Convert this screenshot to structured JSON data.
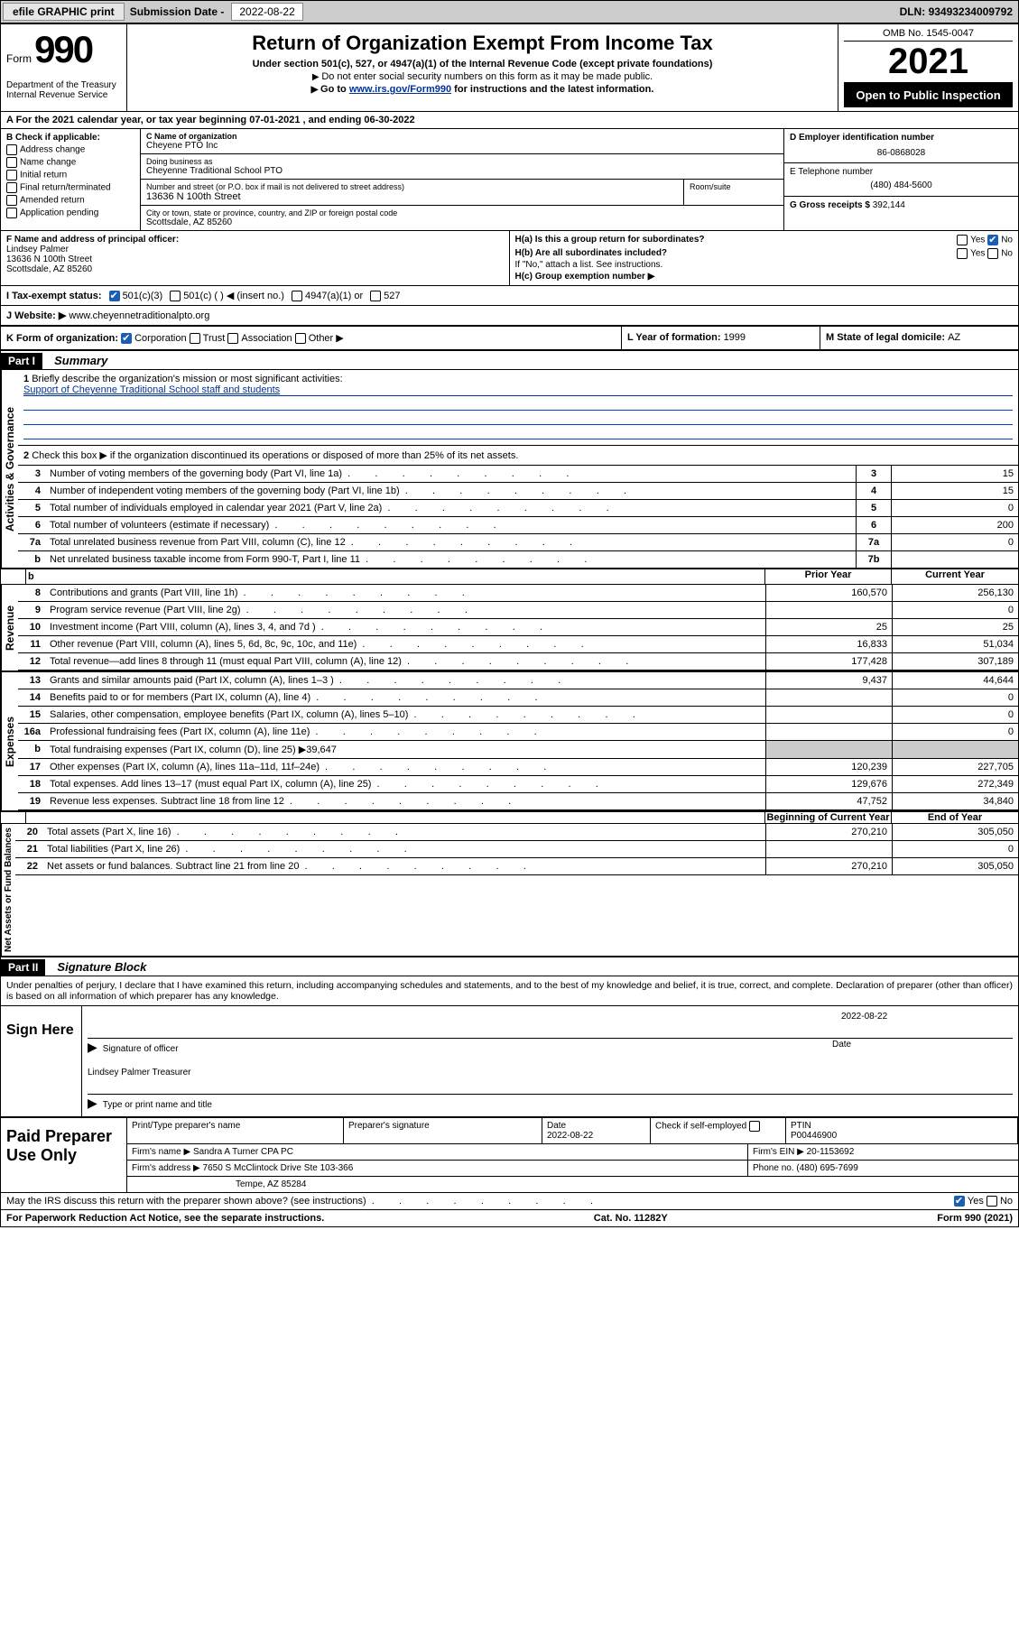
{
  "topbar": {
    "efile": "efile GRAPHIC print",
    "sub_label": "Submission Date - ",
    "sub_date": "2022-08-22",
    "dln_label": "DLN: ",
    "dln": "93493234009792"
  },
  "header": {
    "form_word": "Form",
    "form_num": "990",
    "title": "Return of Organization Exempt From Income Tax",
    "sub1": "Under section 501(c), 527, or 4947(a)(1) of the Internal Revenue Code (except private foundations)",
    "sub2": "Do not enter social security numbers on this form as it may be made public.",
    "sub3_pre": "Go to ",
    "sub3_link": "www.irs.gov/Form990",
    "sub3_post": " for instructions and the latest information.",
    "dept": "Department of the Treasury\nInternal Revenue Service",
    "omb": "OMB No. 1545-0047",
    "year": "2021",
    "inspect": "Open to Public Inspection"
  },
  "rowA": {
    "text_pre": "A For the 2021 calendar year, or tax year beginning ",
    "begin": "07-01-2021",
    "mid": "  , and ending ",
    "end": "06-30-2022"
  },
  "entity": {
    "b_label": "B Check if applicable:",
    "checks": [
      "Address change",
      "Name change",
      "Initial return",
      "Final return/terminated",
      "Amended return",
      "Application pending"
    ],
    "c_label": "C Name of organization",
    "c_name": "Cheyene PTO Inc",
    "dba_label": "Doing business as",
    "dba": "Cheyenne Traditional School PTO",
    "addr_label": "Number and street (or P.O. box if mail is not delivered to street address)",
    "room_label": "Room/suite",
    "addr": "13636 N 100th Street",
    "city_label": "City or town, state or province, country, and ZIP or foreign postal code",
    "city": "Scottsdale, AZ  85260",
    "d_label": "D Employer identification number",
    "d_val": "86-0868028",
    "e_label": "E Telephone number",
    "e_val": "(480) 484-5600",
    "g_label": "G Gross receipts $ ",
    "g_val": "392,144"
  },
  "rowF": {
    "f_label": "F Name and address of principal officer:",
    "f_name": "Lindsey Palmer",
    "f_addr1": "13636 N 100th Street",
    "f_addr2": "Scottsdale, AZ  85260",
    "ha": "H(a)  Is this a group return for subordinates?",
    "hb": "H(b)  Are all subordinates included?",
    "hb_note": "If \"No,\" attach a list. See instructions.",
    "hc": "H(c)  Group exemption number ▶",
    "yes": "Yes",
    "no": "No"
  },
  "taxstatus": {
    "i_label": "I   Tax-exempt status:",
    "opt1": "501(c)(3)",
    "opt2": "501(c) (  ) ◀ (insert no.)",
    "opt3": "4947(a)(1) or",
    "opt4": "527"
  },
  "website": {
    "j_label": "J   Website: ▶",
    "url": "www.cheyennetraditionalpto.org"
  },
  "rowK": {
    "k_label": "K Form of organization:",
    "opts": [
      "Corporation",
      "Trust",
      "Association",
      "Other ▶"
    ],
    "l_label": "L Year of formation: ",
    "l_val": "1999",
    "m_label": "M State of legal domicile: ",
    "m_val": "AZ"
  },
  "part1": {
    "hdr": "Part I",
    "title": "Summary"
  },
  "activities": {
    "vlabel": "Activities & Governance",
    "line1_lbl": "Briefly describe the organization's mission or most significant activities:",
    "line1_val": "Support of Cheyenne Traditional School staff and students",
    "line2": "Check this box ▶           if the organization discontinued its operations or disposed of more than 25% of its net assets.",
    "rows": [
      {
        "n": "3",
        "d": "Number of voting members of the governing body (Part VI, line 1a)",
        "ln": "3",
        "v": "15"
      },
      {
        "n": "4",
        "d": "Number of independent voting members of the governing body (Part VI, line 1b)",
        "ln": "4",
        "v": "15"
      },
      {
        "n": "5",
        "d": "Total number of individuals employed in calendar year 2021 (Part V, line 2a)",
        "ln": "5",
        "v": "0"
      },
      {
        "n": "6",
        "d": "Total number of volunteers (estimate if necessary)",
        "ln": "6",
        "v": "200"
      },
      {
        "n": "7a",
        "d": "Total unrelated business revenue from Part VIII, column (C), line 12",
        "ln": "7a",
        "v": "0"
      },
      {
        "n": "b",
        "d": "Net unrelated business taxable income from Form 990-T, Part I, line 11",
        "ln": "7b",
        "v": ""
      }
    ]
  },
  "yearhdrs": {
    "prior": "Prior Year",
    "current": "Current Year"
  },
  "revenue": {
    "vlabel": "Revenue",
    "rows": [
      {
        "n": "8",
        "d": "Contributions and grants (Part VIII, line 1h)",
        "p": "160,570",
        "c": "256,130"
      },
      {
        "n": "9",
        "d": "Program service revenue (Part VIII, line 2g)",
        "p": "",
        "c": "0"
      },
      {
        "n": "10",
        "d": "Investment income (Part VIII, column (A), lines 3, 4, and 7d )",
        "p": "25",
        "c": "25"
      },
      {
        "n": "11",
        "d": "Other revenue (Part VIII, column (A), lines 5, 6d, 8c, 9c, 10c, and 11e)",
        "p": "16,833",
        "c": "51,034"
      },
      {
        "n": "12",
        "d": "Total revenue—add lines 8 through 11 (must equal Part VIII, column (A), line 12)",
        "p": "177,428",
        "c": "307,189"
      }
    ]
  },
  "expenses": {
    "vlabel": "Expenses",
    "rows": [
      {
        "n": "13",
        "d": "Grants and similar amounts paid (Part IX, column (A), lines 1–3 )",
        "p": "9,437",
        "c": "44,644"
      },
      {
        "n": "14",
        "d": "Benefits paid to or for members (Part IX, column (A), line 4)",
        "p": "",
        "c": "0"
      },
      {
        "n": "15",
        "d": "Salaries, other compensation, employee benefits (Part IX, column (A), lines 5–10)",
        "p": "",
        "c": "0"
      },
      {
        "n": "16a",
        "d": "Professional fundraising fees (Part IX, column (A), line 11e)",
        "p": "",
        "c": "0"
      }
    ],
    "line_b": "Total fundraising expenses (Part IX, column (D), line 25) ▶",
    "line_b_val": "39,647",
    "rows2": [
      {
        "n": "17",
        "d": "Other expenses (Part IX, column (A), lines 11a–11d, 11f–24e)",
        "p": "120,239",
        "c": "227,705"
      },
      {
        "n": "18",
        "d": "Total expenses. Add lines 13–17 (must equal Part IX, column (A), line 25)",
        "p": "129,676",
        "c": "272,349"
      },
      {
        "n": "19",
        "d": "Revenue less expenses. Subtract line 18 from line 12",
        "p": "47,752",
        "c": "34,840"
      }
    ]
  },
  "netassets": {
    "vlabel": "Net Assets or Fund Balances",
    "hdr_begin": "Beginning of Current Year",
    "hdr_end": "End of Year",
    "rows": [
      {
        "n": "20",
        "d": "Total assets (Part X, line 16)",
        "p": "270,210",
        "c": "305,050"
      },
      {
        "n": "21",
        "d": "Total liabilities (Part X, line 26)",
        "p": "",
        "c": "0"
      },
      {
        "n": "22",
        "d": "Net assets or fund balances. Subtract line 21 from line 20",
        "p": "270,210",
        "c": "305,050"
      }
    ]
  },
  "part2": {
    "hdr": "Part II",
    "title": "Signature Block"
  },
  "sigintro": "Under penalties of perjury, I declare that I have examined this return, including accompanying schedules and statements, and to the best of my knowledge and belief, it is true, correct, and complete. Declaration of preparer (other than officer) is based on all information of which preparer has any knowledge.",
  "sign": {
    "label": "Sign Here",
    "sig_of_officer": "Signature of officer",
    "date_lbl": "Date",
    "date": "2022-08-22",
    "name": "Lindsey Palmer Treasurer",
    "name_lbl": "Type or print name and title"
  },
  "prep": {
    "label": "Paid Preparer Use Only",
    "h1": "Print/Type preparer's name",
    "h2": "Preparer's signature",
    "h3": "Date",
    "h4": "Check          if self-employed",
    "h5": "PTIN",
    "date": "2022-08-22",
    "ptin": "P00446900",
    "firm_lbl": "Firm's name     ▶",
    "firm": "Sandra A Turner CPA PC",
    "ein_lbl": "Firm's EIN ▶",
    "ein": "20-1153692",
    "addr_lbl": "Firm's address ▶",
    "addr1": "7650 S McClintock Drive Ste 103-366",
    "addr2": "Tempe, AZ  85284",
    "phone_lbl": "Phone no. ",
    "phone": "(480) 695-7699"
  },
  "footer": {
    "discuss": "May the IRS discuss this return with the preparer shown above? (see instructions)",
    "yes": "Yes",
    "no": "No",
    "paperwork": "For Paperwork Reduction Act Notice, see the separate instructions.",
    "cat": "Cat. No. 11282Y",
    "formref": "Form 990 (2021)"
  }
}
